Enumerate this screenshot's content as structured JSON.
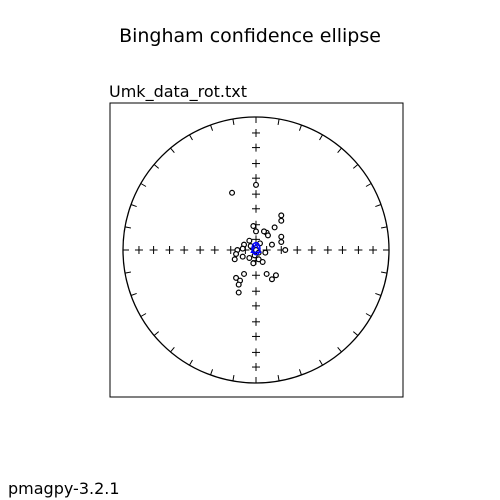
{
  "figure": {
    "suptitle": "Bingham confidence ellipse",
    "version": "pmagpy-3.2.1"
  },
  "chart_data": {
    "type": "scatter",
    "projection": "equal-area stereonet",
    "title": "Umk_data_rot.txt",
    "xlim": [
      -1.1,
      1.1
    ],
    "ylim": [
      -1.1,
      1.1
    ],
    "grid": false,
    "colors": {
      "points": "#000000",
      "mean": "#0000ff",
      "ellipse": "#0000ff",
      "axes": "#000000"
    },
    "primitive_circle": {
      "radius": 1.0,
      "tick_interval_deg": 10
    },
    "crosshair_ticks": [
      -0.88,
      -0.77,
      -0.65,
      -0.54,
      -0.42,
      -0.31,
      -0.19,
      -0.08,
      0.08,
      0.19,
      0.31,
      0.42,
      0.54,
      0.65,
      0.77,
      0.88
    ],
    "points": [
      {
        "x": -0.18,
        "y": 0.43
      },
      {
        "x": 0.0,
        "y": 0.49
      },
      {
        "x": 0.19,
        "y": 0.26
      },
      {
        "x": 0.19,
        "y": 0.22
      },
      {
        "x": 0.14,
        "y": 0.17
      },
      {
        "x": 0.08,
        "y": 0.13
      },
      {
        "x": 0.06,
        "y": 0.14
      },
      {
        "x": 0.09,
        "y": 0.11
      },
      {
        "x": -0.02,
        "y": 0.18
      },
      {
        "x": 0.0,
        "y": 0.14
      },
      {
        "x": 0.19,
        "y": 0.1
      },
      {
        "x": 0.19,
        "y": 0.06
      },
      {
        "x": 0.12,
        "y": 0.04
      },
      {
        "x": 0.22,
        "y": 0.0
      },
      {
        "x": -0.05,
        "y": 0.07
      },
      {
        "x": -0.09,
        "y": 0.04
      },
      {
        "x": -0.1,
        "y": 0.01
      },
      {
        "x": -0.14,
        "y": 0.0
      },
      {
        "x": -0.15,
        "y": -0.03
      },
      {
        "x": -0.16,
        "y": -0.07
      },
      {
        "x": -0.1,
        "y": -0.05
      },
      {
        "x": -0.05,
        "y": -0.06
      },
      {
        "x": -0.02,
        "y": -0.1
      },
      {
        "x": 0.02,
        "y": -0.07
      },
      {
        "x": 0.05,
        "y": -0.09
      },
      {
        "x": 0.07,
        "y": -0.02
      },
      {
        "x": 0.0,
        "y": 0.0
      },
      {
        "x": -0.03,
        "y": 0.02
      },
      {
        "x": 0.03,
        "y": 0.05
      },
      {
        "x": -0.09,
        "y": -0.18
      },
      {
        "x": -0.15,
        "y": -0.21
      },
      {
        "x": -0.12,
        "y": -0.23
      },
      {
        "x": -0.13,
        "y": -0.26
      },
      {
        "x": -0.13,
        "y": -0.32
      },
      {
        "x": 0.08,
        "y": -0.18
      },
      {
        "x": 0.12,
        "y": -0.22
      },
      {
        "x": 0.15,
        "y": -0.19
      },
      {
        "x": -0.04,
        "y": 0.03
      },
      {
        "x": 0.02,
        "y": -0.02
      },
      {
        "x": -0.01,
        "y": -0.04
      }
    ],
    "mean": {
      "x": 0.0,
      "y": 0.01
    },
    "ellipse": {
      "x": 0.0,
      "y": 0.01,
      "rx": 0.03,
      "ry": 0.045
    }
  }
}
